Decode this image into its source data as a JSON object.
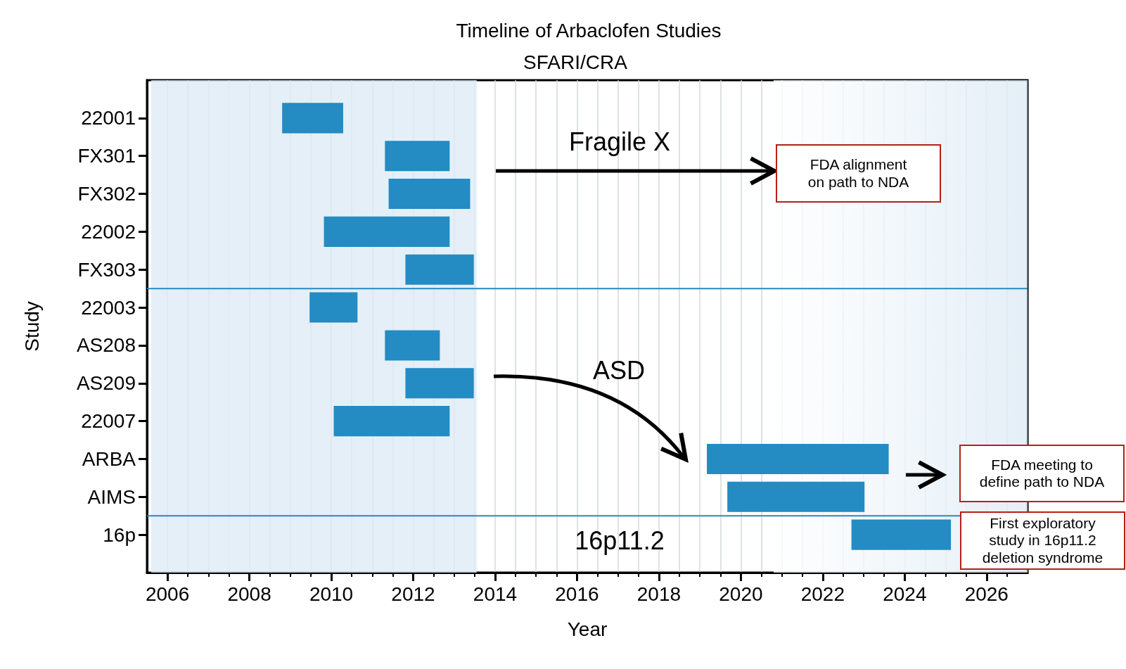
{
  "chart_data": {
    "type": "bar",
    "orientation": "horizontal",
    "title": "Timeline of Arbaclofen Studies",
    "xlabel": "Year",
    "ylabel": "Study",
    "categories": [
      "22001",
      "FX301",
      "FX302",
      "22002",
      "FX303",
      "22003",
      "AS208",
      "AS209",
      "22007",
      "ARBA",
      "AIMS",
      "16p"
    ],
    "base": [
      2008.8,
      2011.31,
      2011.4,
      2009.82,
      2011.81,
      2009.47,
      2011.31,
      2011.81,
      2010.06,
      2019.17,
      2019.67,
      2022.7
    ],
    "values": [
      1.49,
      1.58,
      1.99,
      3.07,
      1.67,
      1.17,
      1.34,
      1.67,
      2.83,
      4.44,
      3.35,
      2.43
    ],
    "color": "#248bc3",
    "xlim": [
      2005.5,
      2027.0
    ],
    "xticks": [
      2006,
      {
        "value": 2006.5,
        "label": null
      },
      {
        "value": 2007,
        "label": null
      },
      {
        "value": 2007.5,
        "label": null
      },
      2008,
      {
        "value": 2008.5,
        "label": null
      },
      {
        "value": 2009,
        "label": null
      },
      {
        "value": 2009.5,
        "label": null
      },
      2010,
      {
        "value": 2010.5,
        "label": null
      },
      {
        "value": 2011,
        "label": null
      },
      {
        "value": 2011.5,
        "label": null
      },
      2012,
      {
        "value": 2012.5,
        "label": null
      },
      {
        "value": 2013,
        "label": null
      },
      {
        "value": 2013.5,
        "label": null
      },
      2014,
      {
        "value": 2014.5,
        "label": null
      },
      {
        "value": 2015,
        "label": null
      },
      {
        "value": 2015.5,
        "label": null
      },
      2016,
      {
        "value": 2016.5,
        "label": null
      },
      {
        "value": 2017,
        "label": null
      },
      {
        "value": 2017.5,
        "label": null
      },
      2018,
      {
        "value": 2018.5,
        "label": null
      },
      {
        "value": 2019,
        "label": null
      },
      {
        "value": 2019.5,
        "label": null
      },
      2020,
      {
        "value": 2020.5,
        "label": null
      },
      {
        "value": 2021,
        "label": null
      },
      {
        "value": 2021.5,
        "label": null
      },
      2022,
      {
        "value": 2022.5,
        "label": null
      },
      {
        "value": 2023,
        "label": null
      },
      {
        "value": 2023.5,
        "label": null
      },
      2024,
      {
        "value": 2024.5,
        "label": null
      },
      {
        "value": 2025,
        "label": null
      },
      {
        "value": 2025.5,
        "label": null
      },
      2026,
      {
        "value": 2026.5,
        "label": null
      }
    ],
    "grid": "x",
    "bands": [
      {
        "axis": "x",
        "from": 2005.6,
        "to": 2013.55,
        "color": "#deebf5"
      },
      {
        "axis": "x",
        "from": 2020.8,
        "to": 2027.0,
        "color": "#deebf5"
      }
    ],
    "annotations": [
      "Fragile X",
      "ASD",
      "16p11.2",
      "FDA alignment\non path to NDA",
      "FDA meeting to\ndefine path to NDA",
      "First exploratory\nstudy in 16p11.2\ndeletion syndrome",
      "SFARI/CRA"
    ]
  }
}
